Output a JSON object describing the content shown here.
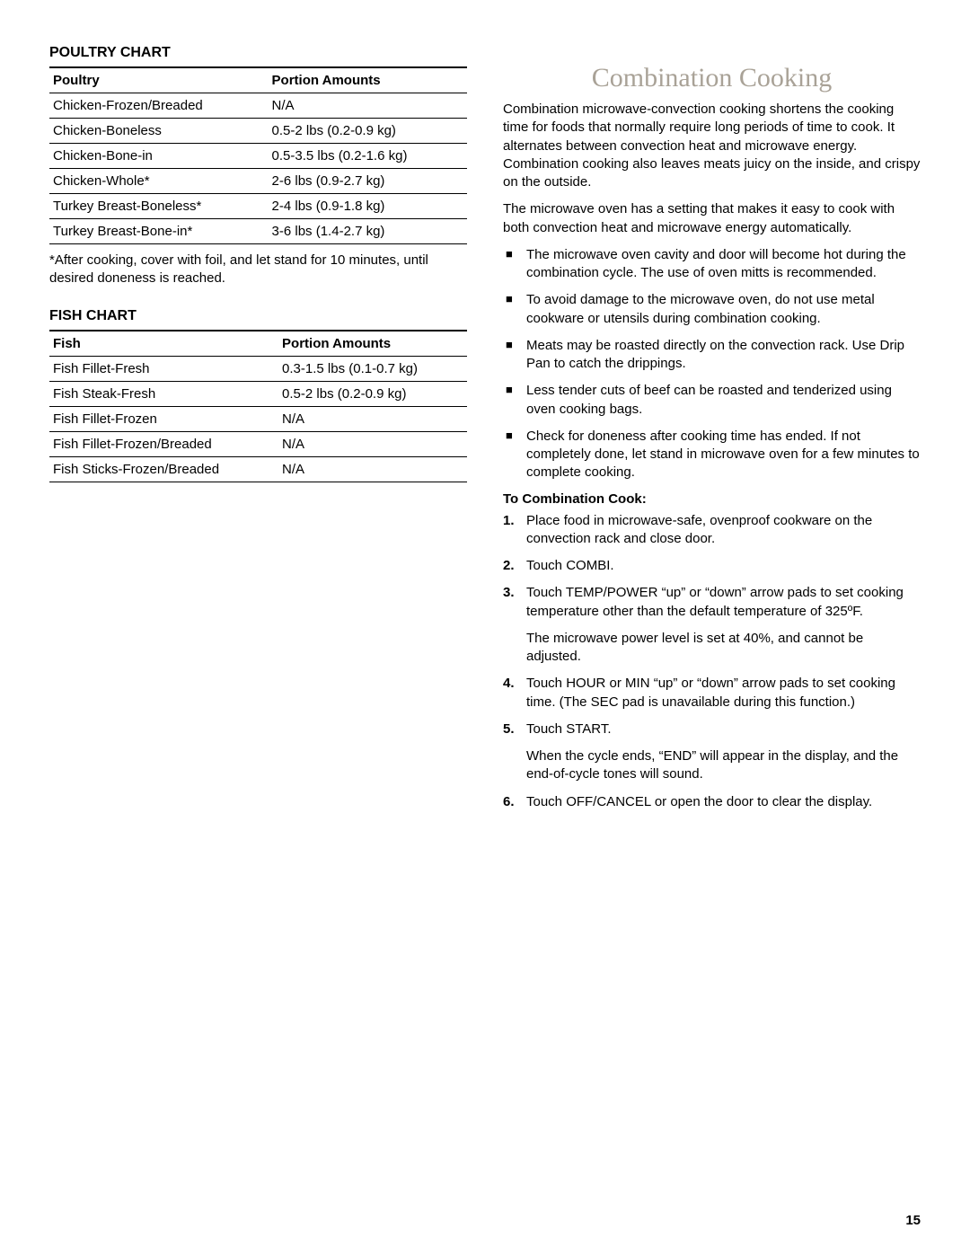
{
  "left": {
    "poultry": {
      "title": "Poultry Chart",
      "headers": [
        "Poultry",
        "Portion Amounts"
      ],
      "rows": [
        [
          "Chicken-Frozen/Breaded",
          "N/A"
        ],
        [
          "Chicken-Boneless",
          "0.5-2 lbs (0.2-0.9 kg)"
        ],
        [
          "Chicken-Bone-in",
          "0.5-3.5 lbs (0.2-1.6 kg)"
        ],
        [
          "Chicken-Whole*",
          "2-6 lbs (0.9-2.7 kg)"
        ],
        [
          "Turkey Breast-Boneless*",
          "2-4 lbs (0.9-1.8 kg)"
        ],
        [
          "Turkey Breast-Bone-in*",
          "3-6 lbs (1.4-2.7 kg)"
        ]
      ],
      "footnote": "*After cooking, cover with foil, and let stand for 10 minutes, until desired doneness is reached."
    },
    "fish": {
      "title": "Fish Chart",
      "headers": [
        "Fish",
        "Portion Amounts"
      ],
      "rows": [
        [
          "Fish Fillet-Fresh",
          "0.3-1.5 lbs (0.1-0.7 kg)"
        ],
        [
          "Fish Steak-Fresh",
          "0.5-2 lbs (0.2-0.9 kg)"
        ],
        [
          "Fish Fillet-Frozen",
          "N/A"
        ],
        [
          "Fish Fillet-Frozen/Breaded",
          "N/A"
        ],
        [
          "Fish Sticks-Frozen/Breaded",
          "N/A"
        ]
      ]
    }
  },
  "right": {
    "heading": "Combination Cooking",
    "para1": "Combination microwave-convection cooking shortens the cooking time for foods that normally require long periods of time to cook. It alternates between convection heat and microwave energy. Combination cooking also leaves meats juicy on the inside, and crispy on the outside.",
    "para2": "The microwave oven has a setting that makes it easy to cook with both convection heat and microwave energy automatically.",
    "bullets": [
      "The microwave oven cavity and door will become hot during the combination cycle. The use of oven mitts is recommended.",
      "To avoid damage to the microwave oven, do not use metal cookware or utensils during combination cooking.",
      "Meats may be roasted directly on the convection rack. Use Drip Pan to catch the drippings.",
      "Less tender cuts of beef can be roasted and tenderized using oven cooking bags.",
      "Check for doneness after cooking time has ended. If not completely done, let stand in microwave oven for a few minutes to complete cooking."
    ],
    "toCook": {
      "title": "To Combination Cook:",
      "steps": [
        {
          "text": "Place food in microwave-safe, ovenproof cookware on the convection rack and close door."
        },
        {
          "text": "Touch COMBI."
        },
        {
          "text": "Touch TEMP/POWER “up” or “down” arrow pads to set cooking temperature other than the default temperature of 325ºF.",
          "extra": "The microwave power level is set at 40%, and cannot be adjusted."
        },
        {
          "text": "Touch HOUR or MIN “up” or “down” arrow pads to set cooking time. (The SEC pad is unavailable during this function.)"
        },
        {
          "text": "Touch START.",
          "extra": "When the cycle ends, “END” will appear in the display, and the end-of-cycle tones will sound."
        },
        {
          "text": "Touch OFF/CANCEL or open the door to clear the display."
        }
      ]
    }
  },
  "pageNumber": "15"
}
